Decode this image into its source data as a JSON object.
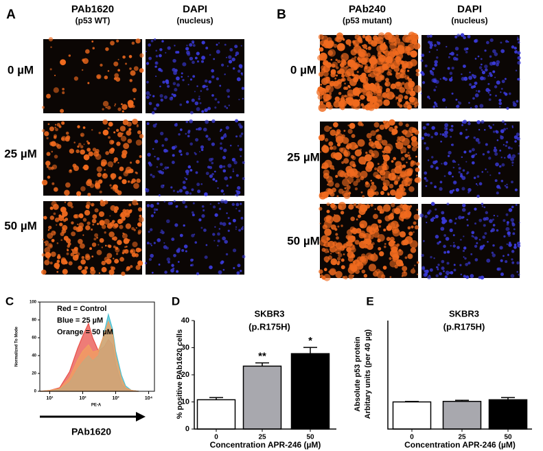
{
  "panels": [
    {
      "label": "A",
      "columns": [
        {
          "title": "PAb1620",
          "subtitle": "(p53 WT)"
        },
        {
          "title": "DAPI",
          "subtitle": "(nucleus)"
        }
      ],
      "rows": [
        "0 µM",
        "25 µM",
        "50 µM"
      ]
    },
    {
      "label": "B",
      "columns": [
        {
          "title": "PAb240",
          "subtitle": "(p53 mutant)"
        },
        {
          "title": "DAPI",
          "subtitle": "(nucleus)"
        }
      ],
      "rows": [
        "0 µM",
        "25 µM",
        "50 µM"
      ]
    }
  ],
  "chart_data": [
    {
      "type": "area",
      "label": "C",
      "ylabel": "Normalized To Mode",
      "xlabel": "PE-A",
      "arrow_label": "PAb1620",
      "xlog": true,
      "x": [
        5,
        10,
        20,
        40,
        70,
        100,
        150,
        200,
        300,
        450,
        600,
        800,
        1000,
        1500,
        2000,
        3000,
        5000
      ],
      "series": [
        {
          "name": "Red = Control",
          "color": "#e8504a",
          "values": [
            0,
            1,
            4,
            22,
            48,
            62,
            76,
            60,
            45,
            50,
            58,
            52,
            30,
            8,
            3,
            1,
            0
          ]
        },
        {
          "name": "Blue = 25 µM",
          "color": "#4bbfd0",
          "values": [
            0,
            0,
            2,
            10,
            25,
            33,
            40,
            34,
            40,
            66,
            86,
            70,
            45,
            18,
            6,
            1,
            0
          ]
        },
        {
          "name": "Orange = 50 µM",
          "color": "#f0a060",
          "values": [
            0,
            1,
            3,
            15,
            35,
            45,
            52,
            44,
            46,
            64,
            78,
            66,
            40,
            14,
            4,
            1,
            0
          ]
        }
      ],
      "xlim": [
        5,
        15000
      ],
      "xticks": [
        {
          "value": 10,
          "label": "10¹"
        },
        {
          "value": 100,
          "label": "10²"
        },
        {
          "value": 1000,
          "label": "10³"
        },
        {
          "value": 10000,
          "label": "10⁴"
        }
      ],
      "ylim": [
        0,
        100
      ],
      "yticks": [
        0,
        20,
        40,
        60,
        80,
        100
      ]
    },
    {
      "type": "bar",
      "label": "D",
      "title": "SKBR3",
      "subtitle": "(p.R175H)",
      "ylabel": "% positive PAb1620 cells",
      "xlabel": "Concentration APR-246 (µM)",
      "categories": [
        "0",
        "25",
        "50"
      ],
      "values": [
        10.8,
        23.2,
        27.8
      ],
      "errors": [
        0.8,
        1.2,
        2.3
      ],
      "colors": [
        "#ffffff",
        "#a8a8ae",
        "#000000"
      ],
      "value_annotations": [
        null,
        "**",
        "*"
      ],
      "ylim": [
        0,
        40
      ],
      "yticks": [
        0,
        10,
        20,
        30,
        40
      ]
    },
    {
      "type": "bar",
      "label": "E",
      "title": "SKBR3",
      "subtitle": "(p.R175H)",
      "ylabel": [
        "Absolute p53 protein",
        "Arbitary units (per 40 µg)"
      ],
      "xlabel": "Concentration APR-246 (µM)",
      "categories": [
        "0",
        "25",
        "50"
      ],
      "values": [
        1.0,
        1.02,
        1.08
      ],
      "errors": [
        0.02,
        0.04,
        0.08
      ],
      "colors": [
        "#ffffff",
        "#a8a8ae",
        "#000000"
      ],
      "ylim": [
        0,
        4
      ]
    }
  ]
}
